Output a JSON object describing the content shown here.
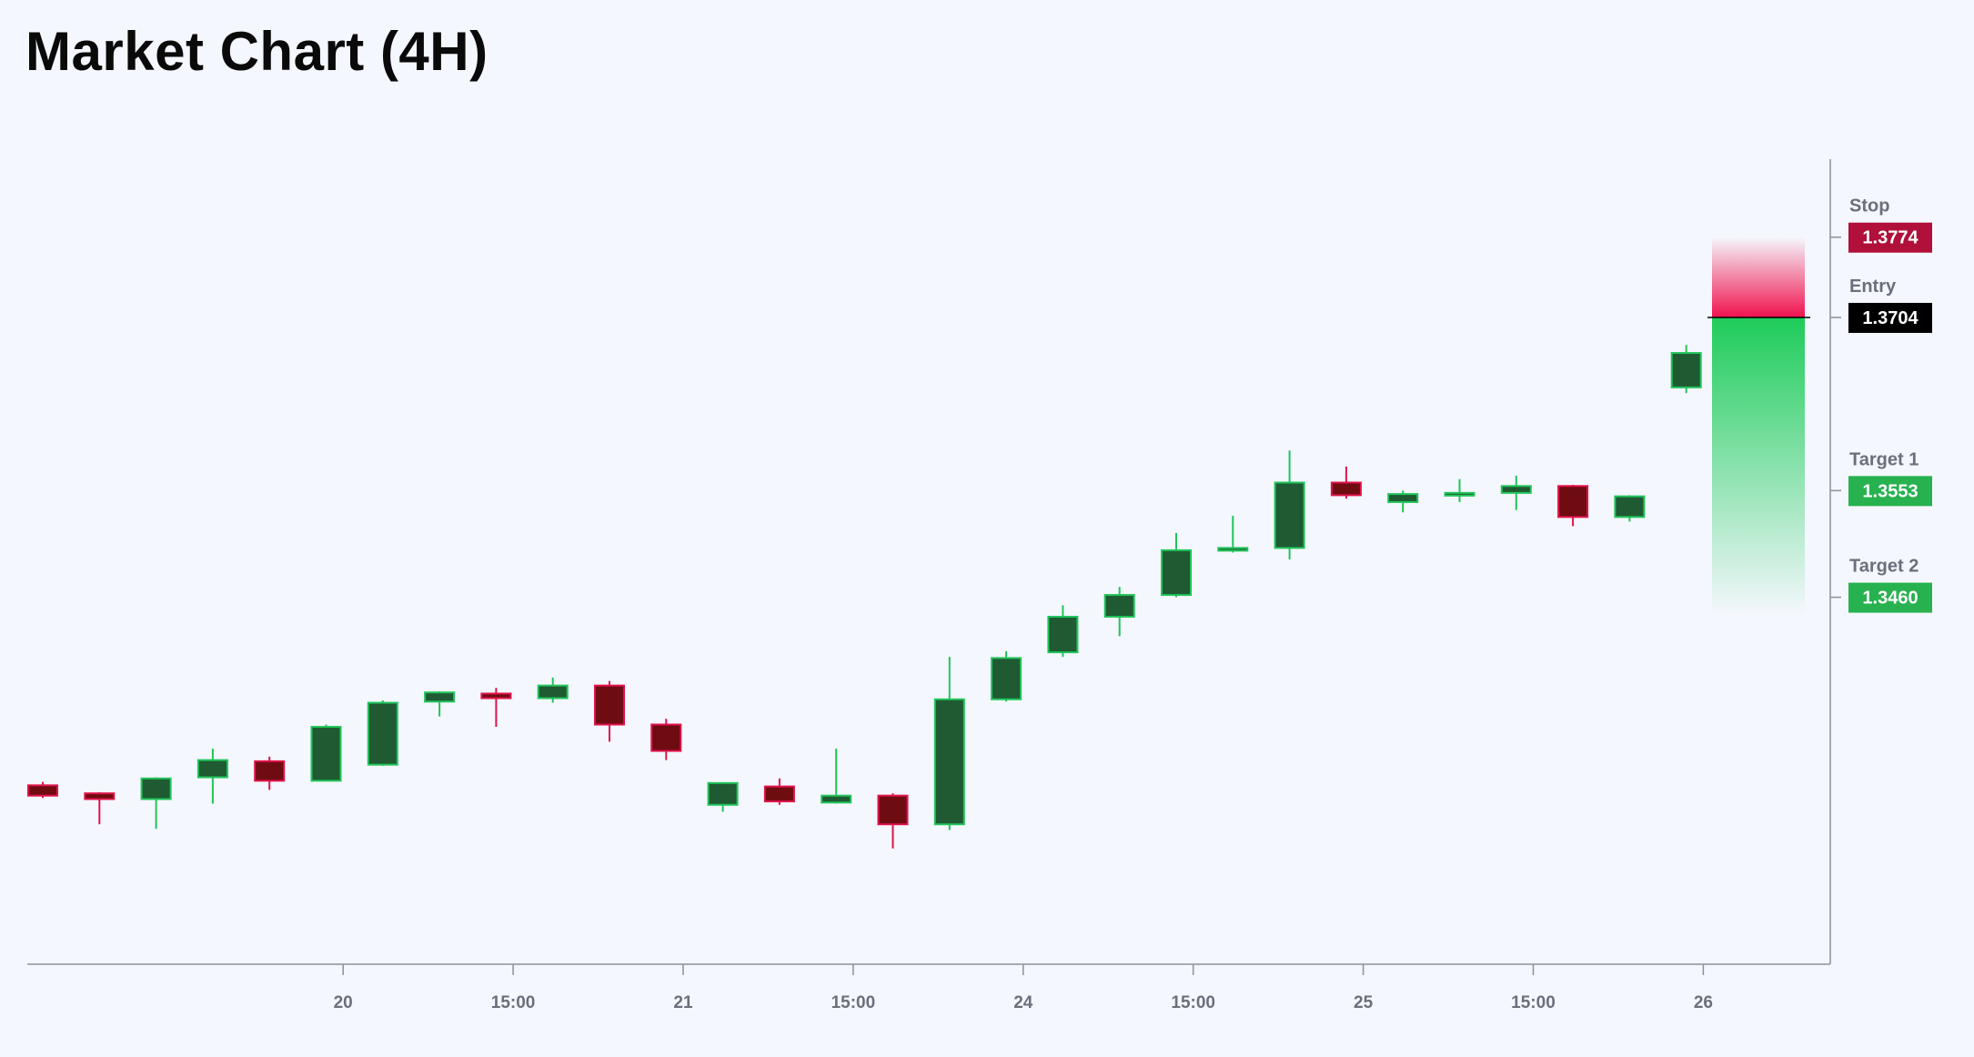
{
  "header": {
    "title": "Market Chart (4H)"
  },
  "colors": {
    "background": "#f4f7fd",
    "bull_body": "#1f5a32",
    "bull_outline": "#21c45a",
    "bear_body": "#6e0c12",
    "bear_outline": "#e0124a",
    "stop": "#b0103a",
    "entry": "#000000",
    "target": "#27b24f",
    "axis": "#8c909c"
  },
  "chart_data": {
    "type": "candlestick",
    "title": "Market Chart (4H)",
    "x_tick_labels": [
      "20",
      "15:00",
      "21",
      "15:00",
      "24",
      "15:00",
      "25",
      "15:00",
      "26"
    ],
    "x_tick_candle_index": [
      5.3,
      8.3,
      11.3,
      14.3,
      17.3,
      20.3,
      23.3,
      26.3,
      29.3
    ],
    "ylim": [
      1.314,
      1.3842
    ],
    "candles": [
      {
        "o": 1.3296,
        "h": 1.3299,
        "l": 1.3285,
        "c": 1.3287
      },
      {
        "o": 1.3289,
        "h": 1.329,
        "l": 1.3262,
        "c": 1.3284
      },
      {
        "o": 1.3284,
        "h": 1.3303,
        "l": 1.3258,
        "c": 1.3302
      },
      {
        "o": 1.3303,
        "h": 1.3328,
        "l": 1.328,
        "c": 1.3318
      },
      {
        "o": 1.3317,
        "h": 1.3321,
        "l": 1.3292,
        "c": 1.33
      },
      {
        "o": 1.33,
        "h": 1.3349,
        "l": 1.33,
        "c": 1.3347
      },
      {
        "o": 1.3314,
        "h": 1.337,
        "l": 1.3313,
        "c": 1.3368
      },
      {
        "o": 1.3369,
        "h": 1.3378,
        "l": 1.3356,
        "c": 1.3377
      },
      {
        "o": 1.3376,
        "h": 1.3381,
        "l": 1.3347,
        "c": 1.3372
      },
      {
        "o": 1.3372,
        "h": 1.339,
        "l": 1.3368,
        "c": 1.3383
      },
      {
        "o": 1.3383,
        "h": 1.3387,
        "l": 1.3334,
        "c": 1.3349
      },
      {
        "o": 1.3349,
        "h": 1.3354,
        "l": 1.3318,
        "c": 1.3326
      },
      {
        "o": 1.3279,
        "h": 1.3298,
        "l": 1.3273,
        "c": 1.3298
      },
      {
        "o": 1.3295,
        "h": 1.3302,
        "l": 1.3279,
        "c": 1.3282
      },
      {
        "o": 1.3281,
        "h": 1.3328,
        "l": 1.328,
        "c": 1.3287
      },
      {
        "o": 1.3287,
        "h": 1.3289,
        "l": 1.3241,
        "c": 1.3262
      },
      {
        "o": 1.3262,
        "h": 1.3408,
        "l": 1.3257,
        "c": 1.3371
      },
      {
        "o": 1.3371,
        "h": 1.3413,
        "l": 1.3369,
        "c": 1.3407
      },
      {
        "o": 1.3412,
        "h": 1.3453,
        "l": 1.3408,
        "c": 1.3443
      },
      {
        "o": 1.3443,
        "h": 1.3469,
        "l": 1.3426,
        "c": 1.3462
      },
      {
        "o": 1.3462,
        "h": 1.3516,
        "l": 1.346,
        "c": 1.3501
      },
      {
        "o": 1.3501,
        "h": 1.3531,
        "l": 1.3499,
        "c": 1.3503
      },
      {
        "o": 1.3503,
        "h": 1.3588,
        "l": 1.3493,
        "c": 1.356
      },
      {
        "o": 1.356,
        "h": 1.3574,
        "l": 1.3546,
        "c": 1.3549
      },
      {
        "o": 1.3543,
        "h": 1.3553,
        "l": 1.3534,
        "c": 1.355
      },
      {
        "o": 1.3549,
        "h": 1.3563,
        "l": 1.3543,
        "c": 1.3551
      },
      {
        "o": 1.3551,
        "h": 1.3566,
        "l": 1.3536,
        "c": 1.3557
      },
      {
        "o": 1.3557,
        "h": 1.3558,
        "l": 1.3522,
        "c": 1.353
      },
      {
        "o": 1.353,
        "h": 1.3549,
        "l": 1.3526,
        "c": 1.3548
      },
      {
        "o": 1.3643,
        "h": 1.368,
        "l": 1.3638,
        "c": 1.3673
      }
    ],
    "levels": [
      {
        "name": "Stop",
        "value": 1.3774,
        "label": "1.3774",
        "color": "#b0103a"
      },
      {
        "name": "Entry",
        "value": 1.3704,
        "label": "1.3704",
        "color": "#000000"
      },
      {
        "name": "Target 1",
        "value": 1.3553,
        "label": "1.3553",
        "color": "#27b24f"
      },
      {
        "name": "Target 2",
        "value": 1.346,
        "label": "1.3460",
        "color": "#27b24f"
      }
    ]
  }
}
